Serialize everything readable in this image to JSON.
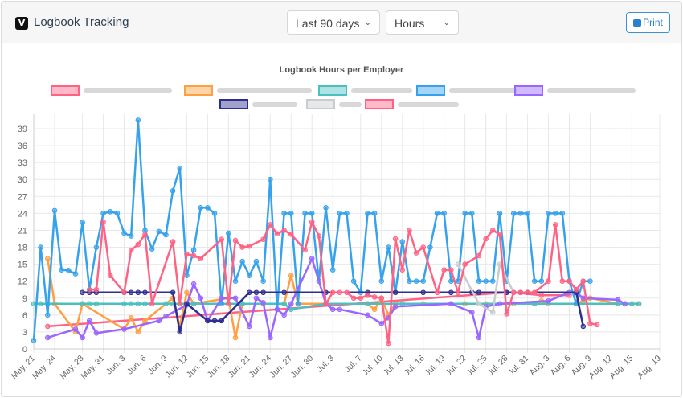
{
  "header": {
    "title": "Logbook Tracking",
    "logo_letter": "V",
    "range_select": "Last 90 days",
    "unit_select": "Hours",
    "print_label": "Print"
  },
  "chart_data": {
    "type": "line",
    "title": "Logbook Hours per Employer",
    "xlabel": "",
    "ylabel": "",
    "ylim": [
      0,
      40
    ],
    "yticks": [
      0,
      3,
      6,
      9,
      12,
      15,
      18,
      21,
      24,
      27,
      30,
      33,
      36,
      39
    ],
    "x_start": "May. 21",
    "x_days": 90,
    "xticks": [
      {
        "d": 0,
        "l": "May. 21"
      },
      {
        "d": 3,
        "l": "May. 24"
      },
      {
        "d": 7,
        "l": "May. 28"
      },
      {
        "d": 10,
        "l": "May. 31"
      },
      {
        "d": 13,
        "l": "Jun. 3"
      },
      {
        "d": 16,
        "l": "Jun. 6"
      },
      {
        "d": 19,
        "l": "Jun. 9"
      },
      {
        "d": 22,
        "l": "Jun. 12"
      },
      {
        "d": 25,
        "l": "Jun. 15"
      },
      {
        "d": 28,
        "l": "Jun. 18"
      },
      {
        "d": 31,
        "l": "Jun. 21"
      },
      {
        "d": 34,
        "l": "Jun. 24"
      },
      {
        "d": 37,
        "l": "Jun. 27"
      },
      {
        "d": 40,
        "l": "Jun. 30"
      },
      {
        "d": 43,
        "l": "Jul. 3"
      },
      {
        "d": 47,
        "l": "Jul. 7"
      },
      {
        "d": 50,
        "l": "Jul. 10"
      },
      {
        "d": 53,
        "l": "Jul. 13"
      },
      {
        "d": 56,
        "l": "Jul. 16"
      },
      {
        "d": 59,
        "l": "Jul. 19"
      },
      {
        "d": 62,
        "l": "Jul. 22"
      },
      {
        "d": 65,
        "l": "Jul. 25"
      },
      {
        "d": 68,
        "l": "Jul. 28"
      },
      {
        "d": 71,
        "l": "Jul. 31"
      },
      {
        "d": 74,
        "l": "Aug. 3"
      },
      {
        "d": 77,
        "l": "Aug. 6"
      },
      {
        "d": 80,
        "l": "Aug. 9"
      },
      {
        "d": 83,
        "l": "Aug. 12"
      },
      {
        "d": 86,
        "l": "Aug. 15"
      },
      {
        "d": 90,
        "l": "Aug. 19"
      }
    ],
    "grid": true,
    "legend": "top",
    "series": [
      {
        "name": "[redacted employer 1]",
        "color": "#ff6384",
        "points": [
          [
            2,
            4
          ],
          [
            68,
            10
          ],
          [
            69,
            10
          ],
          [
            73,
            9.5
          ],
          [
            77,
            9.5
          ]
        ]
      },
      {
        "name": "[redacted employer 2]",
        "color": "#ff9f40",
        "points": [
          [
            2,
            16
          ],
          [
            3,
            8
          ],
          [
            6,
            3
          ],
          [
            7,
            8
          ],
          [
            13,
            3.5
          ],
          [
            14,
            5.5
          ],
          [
            15,
            3
          ],
          [
            16,
            5
          ],
          [
            20,
            9
          ],
          [
            21,
            4
          ],
          [
            22,
            10
          ],
          [
            23,
            8
          ],
          [
            28,
            9
          ],
          [
            29,
            2
          ],
          [
            30,
            8
          ],
          [
            33,
            8
          ],
          [
            36,
            8
          ],
          [
            37,
            13
          ],
          [
            38,
            8
          ],
          [
            42,
            8
          ],
          [
            48,
            8
          ],
          [
            49,
            7
          ],
          [
            50,
            9
          ],
          [
            51,
            6
          ],
          [
            52,
            8
          ],
          [
            56,
            8
          ],
          [
            62,
            8
          ],
          [
            65,
            8
          ],
          [
            69,
            8
          ],
          [
            72,
            8
          ],
          [
            73,
            8.5
          ],
          [
            74,
            8
          ],
          [
            78,
            8
          ],
          [
            79,
            8.5
          ],
          [
            80,
            9
          ],
          [
            84,
            8
          ],
          [
            85,
            8
          ],
          [
            86,
            8
          ],
          [
            87,
            8
          ]
        ]
      },
      {
        "name": "[redacted employer 3]",
        "color": "#4bc0c0",
        "points": [
          [
            0,
            8
          ],
          [
            1,
            8
          ],
          [
            2,
            8
          ],
          [
            7,
            8
          ],
          [
            8,
            8
          ],
          [
            9,
            8
          ],
          [
            13,
            8
          ],
          [
            14,
            8
          ],
          [
            15,
            8
          ],
          [
            16,
            8
          ],
          [
            19,
            8
          ],
          [
            20,
            8
          ],
          [
            21,
            8
          ],
          [
            22,
            8
          ],
          [
            23,
            8
          ],
          [
            30,
            8
          ],
          [
            36,
            8
          ],
          [
            37,
            7
          ],
          [
            42,
            8
          ],
          [
            48,
            8
          ],
          [
            53,
            8
          ],
          [
            60,
            8
          ],
          [
            72,
            8
          ],
          [
            78,
            8
          ],
          [
            84,
            8
          ],
          [
            85,
            8
          ],
          [
            86,
            8
          ],
          [
            87,
            8
          ]
        ]
      },
      {
        "name": "[redacted employer 4]",
        "color": "#36a2eb",
        "points": [
          [
            0,
            1.5
          ],
          [
            1,
            18
          ],
          [
            2,
            6
          ],
          [
            3,
            24.5
          ],
          [
            4,
            14
          ],
          [
            5,
            13.9
          ],
          [
            6,
            13.3
          ],
          [
            7,
            22.4
          ],
          [
            8,
            10.5
          ],
          [
            9,
            18
          ],
          [
            10,
            24
          ],
          [
            11,
            24.3
          ],
          [
            12,
            24
          ],
          [
            13,
            20.5
          ],
          [
            14,
            20
          ],
          [
            15,
            41
          ],
          [
            16,
            21
          ],
          [
            17,
            17.7
          ],
          [
            18,
            20.8
          ],
          [
            19,
            20.2
          ],
          [
            20,
            28
          ],
          [
            21,
            32
          ],
          [
            22,
            13
          ],
          [
            23,
            17.5
          ],
          [
            24,
            25
          ],
          [
            25,
            25
          ],
          [
            26,
            24
          ],
          [
            27,
            8
          ],
          [
            28,
            20.5
          ],
          [
            29,
            12
          ],
          [
            30,
            15.5
          ],
          [
            31,
            13
          ],
          [
            32,
            15.5
          ],
          [
            33,
            12
          ],
          [
            34,
            30
          ],
          [
            35,
            7
          ],
          [
            36,
            24
          ],
          [
            37,
            24
          ],
          [
            38,
            8
          ],
          [
            39,
            24
          ],
          [
            40,
            24
          ],
          [
            41,
            12
          ],
          [
            42,
            25
          ],
          [
            43,
            14
          ],
          [
            44,
            24
          ],
          [
            45,
            24
          ],
          [
            46,
            12
          ],
          [
            47,
            10
          ],
          [
            48,
            24
          ],
          [
            49,
            24
          ],
          [
            50,
            12
          ],
          [
            51,
            18
          ],
          [
            52,
            10
          ],
          [
            53,
            19
          ],
          [
            54,
            12
          ],
          [
            55,
            12
          ],
          [
            56,
            12
          ],
          [
            57,
            18
          ],
          [
            58,
            24
          ],
          [
            59,
            24
          ],
          [
            60,
            12
          ],
          [
            61,
            12
          ],
          [
            62,
            24
          ],
          [
            63,
            24
          ],
          [
            64,
            12
          ],
          [
            65,
            12
          ],
          [
            66,
            12
          ],
          [
            67,
            24
          ],
          [
            68,
            12
          ],
          [
            69,
            24
          ],
          [
            70,
            24
          ],
          [
            71,
            24
          ],
          [
            72,
            12
          ],
          [
            73,
            12
          ],
          [
            74,
            24
          ],
          [
            75,
            24
          ],
          [
            76,
            24
          ],
          [
            77,
            12
          ],
          [
            78,
            8
          ],
          [
            79,
            12
          ],
          [
            80,
            12
          ]
        ]
      },
      {
        "name": "[redacted employer 5]",
        "color": "#9966ff",
        "points": [
          [
            2,
            2
          ],
          [
            6,
            3.5
          ],
          [
            7,
            2
          ],
          [
            8,
            5
          ],
          [
            9,
            2.8
          ],
          [
            13,
            3.5
          ],
          [
            18,
            5
          ],
          [
            19,
            5.8
          ],
          [
            22,
            7.8
          ],
          [
            23,
            11.5
          ],
          [
            24,
            9
          ],
          [
            25,
            5
          ],
          [
            27,
            9
          ],
          [
            29,
            9
          ],
          [
            31,
            4
          ],
          [
            32,
            9
          ],
          [
            33,
            8.2
          ],
          [
            34,
            2
          ],
          [
            35,
            7
          ],
          [
            36,
            6
          ],
          [
            37,
            8
          ],
          [
            40,
            16
          ],
          [
            42,
            8
          ],
          [
            43,
            7
          ],
          [
            44,
            7
          ],
          [
            48,
            6
          ],
          [
            50,
            4.5
          ],
          [
            51,
            5.5
          ],
          [
            52,
            7.5
          ],
          [
            60,
            8
          ],
          [
            63,
            6.5
          ],
          [
            64,
            2
          ],
          [
            65,
            7.5
          ],
          [
            67,
            8
          ],
          [
            74,
            8.5
          ],
          [
            77,
            10
          ],
          [
            78,
            10
          ],
          [
            79,
            9
          ],
          [
            84,
            8.7
          ],
          [
            85,
            8
          ]
        ]
      },
      {
        "name": "[redacted employer 6]",
        "color": "#2e2e8f",
        "points": [
          [
            7,
            10
          ],
          [
            8,
            10
          ],
          [
            9,
            10
          ],
          [
            13,
            10
          ],
          [
            14,
            10
          ],
          [
            15,
            10
          ],
          [
            16,
            10
          ],
          [
            20,
            10
          ],
          [
            21,
            3
          ],
          [
            22,
            8
          ],
          [
            25,
            5
          ],
          [
            26,
            5
          ],
          [
            27,
            5
          ],
          [
            31,
            10
          ],
          [
            32,
            10
          ],
          [
            33,
            10
          ],
          [
            36,
            10
          ],
          [
            42,
            10
          ],
          [
            48,
            10
          ],
          [
            52,
            10
          ],
          [
            56,
            10
          ],
          [
            60,
            10
          ],
          [
            63,
            10
          ],
          [
            64,
            10
          ],
          [
            68,
            10
          ],
          [
            69,
            10
          ],
          [
            70,
            10
          ],
          [
            71,
            10
          ],
          [
            78,
            10
          ],
          [
            79,
            4
          ]
        ]
      },
      {
        "name": "[redacted employer 7]",
        "color": "#c9cbcf",
        "points": [
          [
            61,
            15
          ],
          [
            64,
            8
          ],
          [
            66,
            6.5
          ],
          [
            67,
            15
          ],
          [
            69,
            10
          ]
        ]
      },
      {
        "name": "[redacted employer 8]",
        "color": "#ff6384",
        "points": [
          [
            8,
            10.5
          ],
          [
            9,
            10.5
          ],
          [
            10,
            22.5
          ],
          [
            11,
            13
          ],
          [
            13,
            10
          ],
          [
            14,
            17.5
          ],
          [
            15,
            18.5
          ],
          [
            16,
            20.3
          ],
          [
            17,
            8
          ],
          [
            20,
            19
          ],
          [
            21,
            8
          ],
          [
            22,
            16.8
          ],
          [
            23,
            16.5
          ],
          [
            24,
            16
          ],
          [
            27,
            19.4
          ],
          [
            28,
            8
          ],
          [
            29,
            19.2
          ],
          [
            30,
            18
          ],
          [
            31,
            18.2
          ],
          [
            33,
            19.4
          ],
          [
            34,
            22
          ],
          [
            35,
            20.4
          ],
          [
            36,
            21
          ],
          [
            37,
            20.3
          ],
          [
            39,
            17.5
          ],
          [
            40,
            22.5
          ],
          [
            41,
            20
          ],
          [
            42,
            8
          ],
          [
            43,
            10
          ],
          [
            44,
            10
          ],
          [
            45,
            10
          ],
          [
            46,
            9
          ],
          [
            47,
            9
          ],
          [
            48,
            9.5
          ],
          [
            49,
            9.2
          ],
          [
            50,
            9
          ],
          [
            51,
            1
          ],
          [
            52,
            19.5
          ],
          [
            53,
            14
          ],
          [
            54,
            21
          ],
          [
            55,
            17
          ],
          [
            56,
            18
          ],
          [
            58,
            10
          ],
          [
            59,
            14
          ],
          [
            60,
            14
          ],
          [
            61,
            10
          ],
          [
            62,
            15
          ],
          [
            64,
            16.5
          ],
          [
            65,
            19.5
          ],
          [
            66,
            21
          ],
          [
            67,
            20.3
          ],
          [
            68,
            6.2
          ],
          [
            69,
            10
          ],
          [
            70,
            10
          ],
          [
            71,
            10
          ],
          [
            72,
            10
          ],
          [
            74,
            12
          ],
          [
            75,
            22
          ],
          [
            76,
            12
          ],
          [
            77,
            12
          ],
          [
            78,
            10.5
          ],
          [
            79,
            12
          ],
          [
            80,
            4.5
          ],
          [
            81,
            4.3
          ]
        ]
      }
    ]
  }
}
